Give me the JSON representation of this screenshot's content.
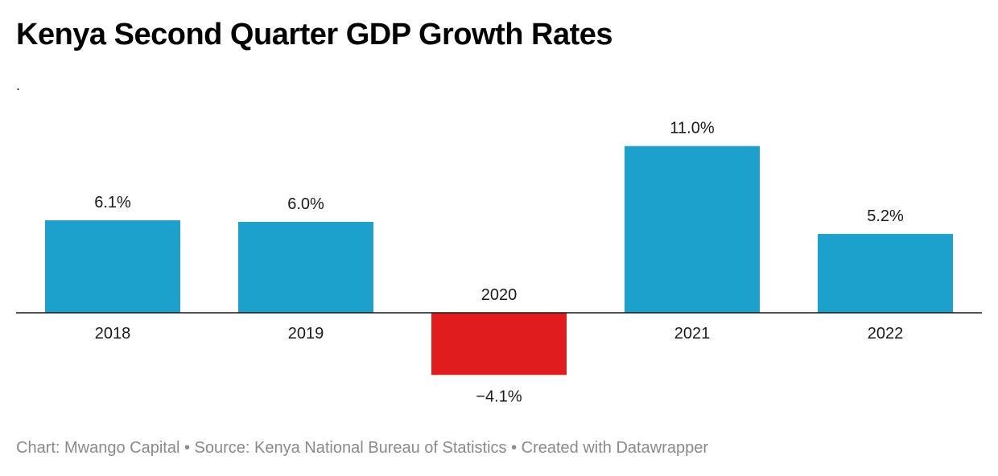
{
  "title": "Kenya Second Quarter GDP Growth Rates",
  "subtitle": ".",
  "footer": "Chart: Mwango Capital • Source: Kenya National Bureau of Statistics • Created with Datawrapper",
  "colors": {
    "positive": "#1ba1cc",
    "negative": "#e11c1c",
    "axis": "#1a1a1a",
    "label": "#1a1a1a"
  },
  "chart_data": {
    "type": "bar",
    "title": "Kenya Second Quarter GDP Growth Rates",
    "categories": [
      "2018",
      "2019",
      "2020",
      "2021",
      "2022"
    ],
    "values": [
      6.1,
      6.0,
      -4.1,
      11.0,
      5.2
    ],
    "value_labels": [
      "6.1%",
      "6.0%",
      "−4.1%",
      "11.0%",
      "5.2%"
    ],
    "xlabel": "",
    "ylabel": "",
    "ylim": [
      -4.1,
      11.0
    ],
    "grid": false,
    "legend": "none"
  }
}
